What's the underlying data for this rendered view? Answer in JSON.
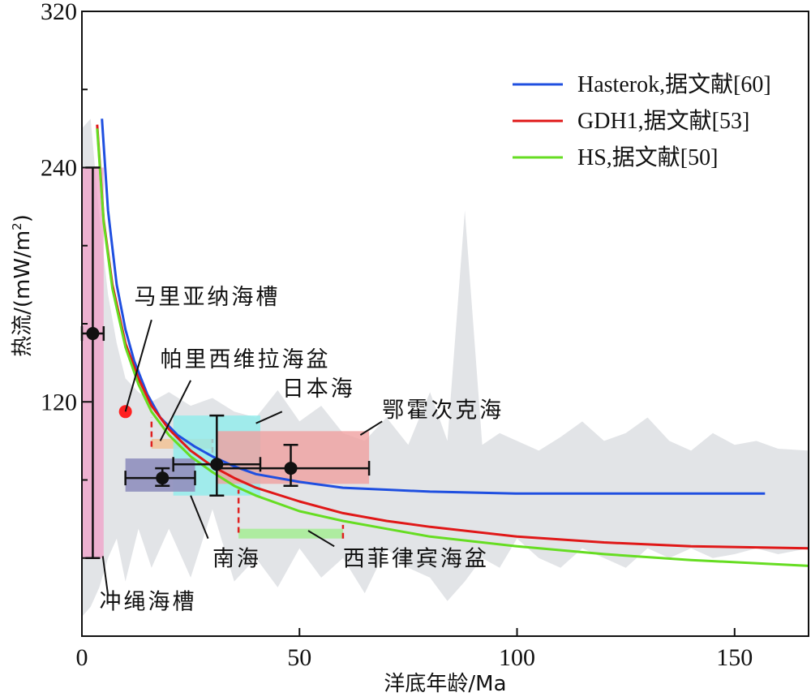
{
  "chart_data": {
    "type": "line",
    "xlabel": "洋底年龄/Ma",
    "ylabel": "热流/(mW/m²)",
    "ylabel_main": "热流/(mW/m",
    "ylabel_sup": "2",
    "ylabel_end": ")",
    "xlim": [
      0,
      167
    ],
    "ylim": [
      0,
      320
    ],
    "x_ticks": [
      0,
      50,
      100,
      150
    ],
    "y_ticks": [
      120,
      240,
      320
    ],
    "y_minor_ticks": [
      40,
      80,
      160,
      200,
      280
    ],
    "legend_position": "top-right",
    "colors": {
      "hasterok": "#1f4fe0",
      "gdh1": "#e01818",
      "hs": "#66dd22",
      "background": "#e2e4e7"
    },
    "series": [
      {
        "name": "Hasterok,据文献[60]",
        "key": "hasterok",
        "x": [
          4.6,
          6,
          8,
          10,
          12,
          15,
          18,
          22,
          26,
          30,
          35,
          40,
          50,
          60,
          70,
          80,
          100,
          120,
          140,
          157
        ],
        "y": [
          265,
          218,
          180,
          157,
          141,
          124,
          112,
          103,
          97,
          92,
          87,
          83,
          79,
          76,
          75,
          74,
          73,
          73,
          73,
          73
        ]
      },
      {
        "name": "GDH1,据文献[53]",
        "key": "gdh1",
        "x": [
          3.5,
          5,
          7,
          10,
          13,
          16,
          20,
          25,
          30,
          35,
          40,
          50,
          60,
          70,
          80,
          100,
          120,
          140,
          167
        ],
        "y": [
          262,
          213,
          180,
          150,
          132,
          118,
          106,
          95,
          87,
          81,
          76,
          69,
          63,
          59,
          56,
          51,
          48,
          46,
          45
        ]
      },
      {
        "name": "HS,据文献[50]",
        "key": "hs",
        "x": [
          3.5,
          5,
          7,
          10,
          13,
          16,
          20,
          25,
          30,
          35,
          40,
          50,
          60,
          70,
          80,
          100,
          120,
          140,
          167
        ],
        "y": [
          260,
          212,
          178,
          148,
          129,
          115,
          103,
          92,
          84,
          77,
          72,
          64,
          59,
          55,
          51,
          46,
          42,
          39,
          36
        ]
      }
    ],
    "background_band": {
      "x": [
        0,
        2,
        4,
        6,
        8,
        10,
        13,
        16,
        20,
        25,
        30,
        35,
        40,
        45,
        50,
        55,
        60,
        65,
        70,
        75,
        80,
        84,
        88,
        92,
        96,
        100,
        105,
        110,
        115,
        120,
        125,
        130,
        135,
        140,
        145,
        150,
        155,
        160,
        167
      ],
      "upper": [
        260,
        265,
        215,
        175,
        150,
        132,
        125,
        120,
        125,
        118,
        122,
        115,
        112,
        126,
        110,
        118,
        104,
        100,
        112,
        98,
        125,
        100,
        218,
        98,
        104,
        100,
        95,
        102,
        110,
        100,
        104,
        112,
        100,
        95,
        104,
        98,
        100,
        96,
        95
      ],
      "lower": [
        10,
        15,
        25,
        40,
        50,
        28,
        55,
        35,
        55,
        30,
        65,
        28,
        40,
        25,
        45,
        30,
        40,
        22,
        45,
        35,
        30,
        18,
        28,
        40,
        35,
        50,
        40,
        35,
        45,
        40,
        35,
        45,
        40,
        45,
        40,
        42,
        45,
        42,
        45
      ]
    },
    "regions": [
      {
        "label": "冲绳海槽",
        "color": "#f0a0c8",
        "opacity": 0.75,
        "box": {
          "x": [
            0,
            5
          ],
          "y": [
            40,
            240
          ]
        },
        "point": {
          "x": 2.5,
          "y": 155,
          "xerr": [
            0,
            5
          ],
          "yerr": [
            40,
            240
          ]
        },
        "label_pos": {
          "x": 4,
          "y": 14
        },
        "leader": [
          [
            4.8,
            41
          ],
          [
            6,
            21
          ]
        ]
      },
      {
        "label": "马里亚纳海槽",
        "color": "#ff2020",
        "dot": {
          "x": 10,
          "y": 115
        },
        "label_pos": {
          "x": 12,
          "y": 170
        },
        "leader": [
          [
            10,
            115
          ],
          [
            16,
            162
          ]
        ]
      },
      {
        "label": "帕里西维拉海盆",
        "color": "#f2c49a",
        "opacity": 0.9,
        "box": {
          "x": [
            16,
            30
          ],
          "y": [
            96,
            101
          ]
        },
        "dashed_color": "#e02020",
        "dashed": [
          [
            [
              16,
              97
            ],
            [
              16,
              112
            ]
          ],
          [
            [
              30,
              94
            ],
            [
              30,
              101
            ]
          ]
        ],
        "label_pos": {
          "x": 18,
          "y": 138
        },
        "leader": [
          [
            18,
            100
          ],
          [
            25,
            131
          ]
        ]
      },
      {
        "label": "日本海",
        "color": "#90ecec",
        "opacity": 0.8,
        "box": {
          "x": [
            21,
            41
          ],
          "y": [
            72,
            113
          ]
        },
        "point": {
          "x": 31,
          "y": 88,
          "xerr": [
            21,
            41
          ],
          "yerr": [
            72,
            113
          ]
        },
        "label_pos": {
          "x": 46,
          "y": 123
        },
        "leader": [
          [
            40,
            109
          ],
          [
            46,
            115
          ]
        ]
      },
      {
        "label": "鄂霍次克海",
        "color": "#f0a0a0",
        "opacity": 0.8,
        "box": {
          "x": [
            31,
            66
          ],
          "y": [
            78,
            105
          ]
        },
        "point": {
          "x": 48,
          "y": 86,
          "xerr": [
            31,
            66
          ],
          "yerr": [
            77,
            98
          ]
        },
        "label_pos": {
          "x": 69,
          "y": 112
        },
        "leader": [
          [
            64,
            103
          ],
          [
            69,
            110
          ]
        ]
      },
      {
        "label": "南海",
        "color": "#9494c0",
        "opacity": 0.95,
        "box": {
          "x": [
            10,
            26
          ],
          "y": [
            74,
            91
          ]
        },
        "point": {
          "x": 18.5,
          "y": 81,
          "xerr": [
            10,
            26
          ],
          "yerr": [
            77,
            86
          ]
        },
        "label_pos": {
          "x": 30,
          "y": 36
        },
        "leader": [
          [
            25,
            72
          ],
          [
            29,
            50
          ]
        ]
      },
      {
        "label": "西菲律宾海盆",
        "color": "#a8ec98",
        "opacity": 0.9,
        "box": {
          "x": [
            36,
            60
          ],
          "y": [
            50,
            55
          ]
        },
        "dashed_color": "#e02020",
        "dashed": [
          [
            [
              36,
              53
            ],
            [
              36,
              75
            ]
          ],
          [
            [
              60,
              50
            ],
            [
              60,
              57
            ]
          ]
        ],
        "label_pos": {
          "x": 60,
          "y": 36
        },
        "leader": [
          [
            52,
            54
          ],
          [
            58,
            46
          ]
        ]
      }
    ]
  }
}
